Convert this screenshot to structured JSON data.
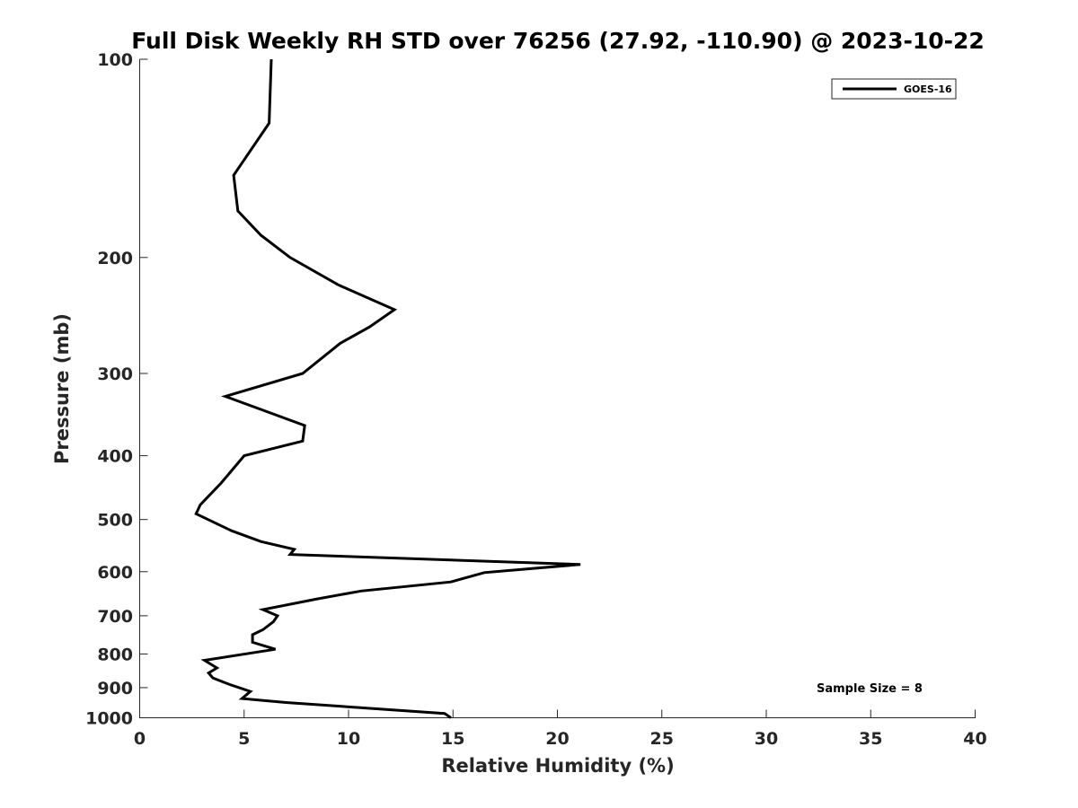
{
  "chart_data": {
    "type": "line",
    "title": "Full Disk Weekly RH STD over 76256 (27.92, -110.90) @ 2023-10-22",
    "xlabel": "Relative Humidity (%)",
    "ylabel": "Pressure (mb)",
    "xlim": [
      0,
      40
    ],
    "ylim": [
      100,
      1000
    ],
    "yscale": "log",
    "y_reversed": true,
    "x_ticks": [
      0,
      5,
      10,
      15,
      20,
      25,
      30,
      35,
      40
    ],
    "x_tick_labels": [
      "0",
      "5",
      "10",
      "15",
      "20",
      "25",
      "30",
      "35",
      "40"
    ],
    "y_ticks": [
      100,
      200,
      300,
      400,
      500,
      600,
      700,
      800,
      900,
      1000
    ],
    "y_tick_labels": [
      "100",
      "200",
      "300",
      "400",
      "500",
      "600",
      "700",
      "800",
      "900",
      "1000"
    ],
    "grid": false,
    "legend_position": "top-right",
    "annotation": "Sample Size = 8",
    "series": [
      {
        "name": "GOES-16",
        "color": "#000000",
        "points": [
          [
            6.3,
            100
          ],
          [
            6.2,
            125
          ],
          [
            4.5,
            150
          ],
          [
            4.7,
            170
          ],
          [
            5.8,
            185
          ],
          [
            7.2,
            200
          ],
          [
            9.5,
            220
          ],
          [
            12.2,
            240
          ],
          [
            11.0,
            255
          ],
          [
            9.6,
            270
          ],
          [
            7.8,
            300
          ],
          [
            4.1,
            325
          ],
          [
            7.9,
            360
          ],
          [
            7.8,
            380
          ],
          [
            5.0,
            400
          ],
          [
            3.9,
            440
          ],
          [
            2.9,
            475
          ],
          [
            2.7,
            490
          ],
          [
            4.4,
            520
          ],
          [
            5.8,
            540
          ],
          [
            7.4,
            555
          ],
          [
            7.2,
            565
          ],
          [
            21.1,
            585
          ],
          [
            16.5,
            602
          ],
          [
            14.9,
            622
          ],
          [
            10.6,
            642
          ],
          [
            8.5,
            660
          ],
          [
            5.9,
            685
          ],
          [
            6.6,
            700
          ],
          [
            6.4,
            715
          ],
          [
            5.9,
            735
          ],
          [
            5.4,
            748
          ],
          [
            5.4,
            768
          ],
          [
            6.5,
            787
          ],
          [
            3.1,
            818
          ],
          [
            3.7,
            840
          ],
          [
            3.3,
            855
          ],
          [
            3.5,
            870
          ],
          [
            4.3,
            890
          ],
          [
            5.3,
            912
          ],
          [
            4.9,
            935
          ],
          [
            7.0,
            948
          ],
          [
            14.6,
            985
          ],
          [
            14.9,
            1000
          ]
        ]
      }
    ]
  }
}
